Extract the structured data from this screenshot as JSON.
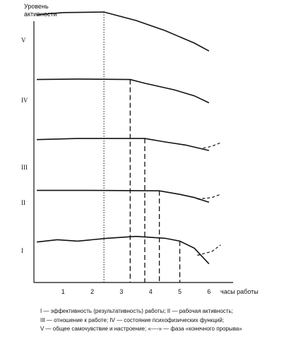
{
  "chart_data": {
    "type": "line",
    "ylabel_lines": [
      "Уровень",
      "активности"
    ],
    "xlabel": "часы работы",
    "x_ticks": [
      "1",
      "2",
      "3",
      "4",
      "5",
      "6"
    ],
    "xlim": [
      0,
      6.6
    ],
    "series": [
      {
        "name": "V",
        "points": [
          [
            0.1,
            0.9
          ],
          [
            1.0,
            0.94
          ],
          [
            2.4,
            0.95
          ],
          [
            3.5,
            0.8
          ],
          [
            4.5,
            0.62
          ],
          [
            5.5,
            0.4
          ],
          [
            6.0,
            0.26
          ]
        ],
        "final_breakthrough": null,
        "phase_lines_x": [
          2.4
        ]
      },
      {
        "name": "IV",
        "points": [
          [
            0.1,
            0.9
          ],
          [
            1.5,
            0.91
          ],
          [
            3.3,
            0.9
          ],
          [
            3.8,
            0.82
          ],
          [
            4.8,
            0.68
          ],
          [
            5.5,
            0.55
          ],
          [
            6.0,
            0.4
          ]
        ],
        "final_breakthrough": null,
        "phase_lines_x": [
          3.3
        ]
      },
      {
        "name": "III",
        "points": [
          [
            0.1,
            0.86
          ],
          [
            1.5,
            0.89
          ],
          [
            3.8,
            0.89
          ],
          [
            4.5,
            0.8
          ],
          [
            5.2,
            0.72
          ],
          [
            6.0,
            0.58
          ]
        ],
        "final_breakthrough": [
          [
            5.8,
            0.64
          ],
          [
            6.1,
            0.69
          ],
          [
            6.4,
            0.78
          ]
        ],
        "phase_lines_x": [
          3.8
        ]
      },
      {
        "name": "II",
        "points": [
          [
            0.1,
            0.9
          ],
          [
            2.0,
            0.9
          ],
          [
            4.3,
            0.89
          ],
          [
            5.0,
            0.8
          ],
          [
            5.5,
            0.72
          ],
          [
            6.0,
            0.6
          ]
        ],
        "final_breakthrough": [
          [
            5.6,
            0.68
          ],
          [
            6.1,
            0.72
          ],
          [
            6.4,
            0.8
          ]
        ],
        "phase_lines_x": [
          4.3
        ]
      },
      {
        "name": "I",
        "points": [
          [
            0.1,
            0.78
          ],
          [
            0.8,
            0.83
          ],
          [
            1.5,
            0.8
          ],
          [
            2.5,
            0.86
          ],
          [
            3.5,
            0.9
          ],
          [
            4.5,
            0.86
          ],
          [
            5.0,
            0.8
          ],
          [
            5.5,
            0.65
          ],
          [
            6.0,
            0.32
          ]
        ],
        "final_breakthrough": [
          [
            5.6,
            0.5
          ],
          [
            6.1,
            0.58
          ],
          [
            6.4,
            0.72
          ]
        ],
        "phase_lines_x": [
          5.0
        ]
      }
    ],
    "caption": [
      "I — эффективность (результативность) работы; II — рабочая активность;",
      "III — отношение к работе; IV — состояние психофизических функций;",
      "V — общее самочувствие и настроение; «----» — фаза «конечного прорыва»"
    ]
  }
}
